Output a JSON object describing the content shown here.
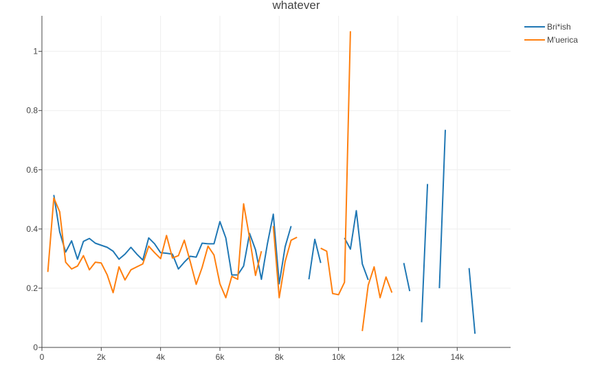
{
  "chart_data": {
    "type": "line",
    "title": "whatever",
    "xlabel": "",
    "ylabel": "",
    "xlim": [
      0,
      15800
    ],
    "ylim": [
      0,
      1.12
    ],
    "x_ticks": [
      0,
      2000,
      4000,
      6000,
      8000,
      10000,
      12000,
      14000
    ],
    "x_tick_labels": [
      "0",
      "2k",
      "4k",
      "6k",
      "8k",
      "10k",
      "12k",
      "14k"
    ],
    "y_ticks": [
      0,
      0.2,
      0.4,
      0.6,
      0.8,
      1
    ],
    "y_tick_labels": [
      "0",
      "0.2",
      "0.4",
      "0.6",
      "0.8",
      "1"
    ],
    "grid": true,
    "legend_position": "top-right",
    "series": [
      {
        "name": "Bri*ish",
        "color": "#1f77b4",
        "points": [
          [
            400,
            0.515
          ],
          [
            600,
            0.39
          ],
          [
            800,
            0.322
          ],
          [
            1000,
            0.36
          ],
          [
            1200,
            0.298
          ],
          [
            1400,
            0.358
          ],
          [
            1600,
            0.368
          ],
          [
            1800,
            0.352
          ],
          [
            2000,
            0.345
          ],
          [
            2200,
            0.338
          ],
          [
            2400,
            0.325
          ],
          [
            2600,
            0.298
          ],
          [
            2800,
            0.315
          ],
          [
            3000,
            0.338
          ],
          [
            3200,
            0.315
          ],
          [
            3400,
            0.295
          ],
          [
            3600,
            0.37
          ],
          [
            3800,
            0.35
          ],
          [
            4000,
            0.32
          ],
          [
            4200,
            0.318
          ],
          [
            4400,
            0.315
          ],
          [
            4600,
            0.265
          ],
          [
            4800,
            0.288
          ],
          [
            5000,
            0.308
          ],
          [
            5200,
            0.305
          ],
          [
            5400,
            0.352
          ],
          [
            5600,
            0.35
          ],
          [
            5800,
            0.35
          ],
          [
            6000,
            0.425
          ],
          [
            6200,
            0.37
          ],
          [
            6400,
            0.245
          ],
          [
            6600,
            0.245
          ],
          [
            6800,
            0.275
          ],
          [
            7000,
            0.385
          ],
          [
            7200,
            0.33
          ],
          [
            7400,
            0.23
          ],
          [
            7600,
            0.35
          ],
          [
            7800,
            0.45
          ],
          [
            8000,
            0.215
          ],
          [
            8200,
            0.34
          ],
          [
            8400,
            0.41
          ],
          [
            8600,
            null
          ],
          [
            8800,
            null
          ],
          [
            9000,
            0.23
          ],
          [
            9200,
            0.365
          ],
          [
            9400,
            0.285
          ],
          [
            9600,
            null
          ],
          [
            9800,
            null
          ],
          [
            10000,
            null
          ],
          [
            10200,
            0.37
          ],
          [
            10400,
            0.332
          ],
          [
            10600,
            0.462
          ],
          [
            10800,
            0.282
          ],
          [
            11000,
            0.228
          ],
          [
            11200,
            null
          ],
          [
            11400,
            null
          ],
          [
            11600,
            null
          ],
          [
            11800,
            null
          ],
          [
            12000,
            null
          ],
          [
            12200,
            0.285
          ],
          [
            12400,
            0.19
          ],
          [
            12600,
            null
          ],
          [
            12800,
            0.085
          ],
          [
            13000,
            0.552
          ],
          [
            13200,
            null
          ],
          [
            13400,
            0.2
          ],
          [
            13600,
            0.735
          ],
          [
            13800,
            null
          ],
          [
            14000,
            null
          ],
          [
            14200,
            null
          ],
          [
            14400,
            0.268
          ],
          [
            14600,
            0.046
          ]
        ]
      },
      {
        "name": "M'uerica",
        "color": "#ff7f0e",
        "points": [
          [
            200,
            0.255
          ],
          [
            400,
            0.505
          ],
          [
            600,
            0.458
          ],
          [
            800,
            0.288
          ],
          [
            1000,
            0.265
          ],
          [
            1200,
            0.275
          ],
          [
            1400,
            0.31
          ],
          [
            1600,
            0.262
          ],
          [
            1800,
            0.288
          ],
          [
            2000,
            0.285
          ],
          [
            2200,
            0.245
          ],
          [
            2400,
            0.185
          ],
          [
            2600,
            0.272
          ],
          [
            2800,
            0.228
          ],
          [
            3000,
            0.262
          ],
          [
            3200,
            0.272
          ],
          [
            3400,
            0.282
          ],
          [
            3600,
            0.342
          ],
          [
            3800,
            0.32
          ],
          [
            4000,
            0.3
          ],
          [
            4200,
            0.378
          ],
          [
            4400,
            0.302
          ],
          [
            4600,
            0.31
          ],
          [
            4800,
            0.362
          ],
          [
            5000,
            0.29
          ],
          [
            5200,
            0.213
          ],
          [
            5400,
            0.27
          ],
          [
            5600,
            0.342
          ],
          [
            5800,
            0.312
          ],
          [
            6000,
            0.215
          ],
          [
            6200,
            0.168
          ],
          [
            6400,
            0.24
          ],
          [
            6600,
            0.23
          ],
          [
            6800,
            0.485
          ],
          [
            7000,
            0.37
          ],
          [
            7200,
            0.243
          ],
          [
            7400,
            0.325
          ],
          [
            7600,
            null
          ],
          [
            7800,
            0.41
          ],
          [
            8000,
            0.168
          ],
          [
            8200,
            0.29
          ],
          [
            8400,
            0.362
          ],
          [
            8600,
            0.372
          ],
          [
            8800,
            null
          ],
          [
            9000,
            null
          ],
          [
            9200,
            null
          ],
          [
            9400,
            0.335
          ],
          [
            9600,
            0.325
          ],
          [
            9800,
            0.182
          ],
          [
            10000,
            0.178
          ],
          [
            10200,
            0.22
          ],
          [
            10400,
            1.068
          ],
          [
            10600,
            null
          ],
          [
            10800,
            0.055
          ],
          [
            11000,
            0.21
          ],
          [
            11200,
            0.272
          ],
          [
            11400,
            0.168
          ],
          [
            11600,
            0.238
          ],
          [
            11800,
            0.185
          ]
        ]
      }
    ]
  }
}
